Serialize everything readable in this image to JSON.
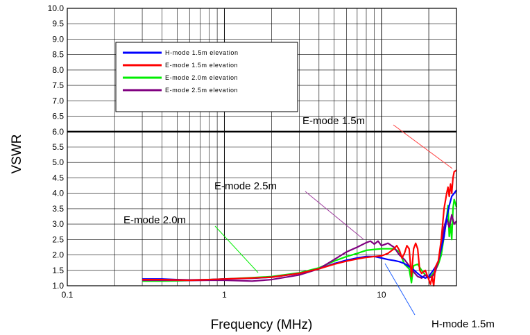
{
  "chart_data": {
    "type": "line",
    "xlabel": "Frequency (MHz)",
    "ylabel": "VSWR",
    "xscale": "log",
    "xlim": [
      0.1,
      30
    ],
    "ylim": [
      1.0,
      10.0
    ],
    "x_tick_labels": [
      {
        "value": 0.1,
        "label": "0.1"
      },
      {
        "value": 1,
        "label": "1"
      },
      {
        "value": 10,
        "label": "10"
      }
    ],
    "y_tick_labels": [
      "1.0",
      "1.5",
      "2.0",
      "2.5",
      "3.0",
      "3.5",
      "4.0",
      "4.5",
      "5.0",
      "5.5",
      "6.0",
      "6.5",
      "7.0",
      "7.5",
      "8.0",
      "8.5",
      "9.0",
      "9.5",
      "10.0"
    ],
    "grid": true,
    "legend_position": "top-left",
    "reference_line": {
      "y": 6.0
    },
    "series": [
      {
        "name": "H-mode 1.5m elevation",
        "color": "#0000ff",
        "points": [
          [
            0.3,
            1.22
          ],
          [
            0.4,
            1.22
          ],
          [
            0.5,
            1.2
          ],
          [
            0.6,
            1.19
          ],
          [
            0.8,
            1.2
          ],
          [
            1,
            1.22
          ],
          [
            1.5,
            1.24
          ],
          [
            2,
            1.28
          ],
          [
            3,
            1.4
          ],
          [
            4,
            1.55
          ],
          [
            5,
            1.72
          ],
          [
            6,
            1.83
          ],
          [
            7,
            1.9
          ],
          [
            8,
            1.95
          ],
          [
            9,
            1.95
          ],
          [
            10,
            1.9
          ],
          [
            11,
            1.85
          ],
          [
            12,
            1.82
          ],
          [
            13,
            1.78
          ],
          [
            14,
            1.72
          ],
          [
            15,
            1.62
          ],
          [
            16,
            1.52
          ],
          [
            17,
            1.4
          ],
          [
            18,
            1.3
          ],
          [
            19,
            1.25
          ],
          [
            20,
            1.3
          ],
          [
            21,
            1.45
          ],
          [
            22,
            1.6
          ],
          [
            23,
            1.8
          ],
          [
            24,
            2.2
          ],
          [
            25,
            2.6
          ],
          [
            26,
            3.2
          ],
          [
            27,
            3.6
          ],
          [
            28,
            3.9
          ],
          [
            29,
            4.0
          ],
          [
            30,
            4.1
          ]
        ]
      },
      {
        "name": "E-mode 1.5m elevation",
        "color": "#ff0000",
        "points": [
          [
            0.3,
            1.2
          ],
          [
            0.4,
            1.2
          ],
          [
            0.5,
            1.19
          ],
          [
            0.6,
            1.18
          ],
          [
            0.8,
            1.2
          ],
          [
            1,
            1.22
          ],
          [
            1.5,
            1.25
          ],
          [
            2,
            1.28
          ],
          [
            3,
            1.4
          ],
          [
            4,
            1.55
          ],
          [
            5,
            1.7
          ],
          [
            6,
            1.8
          ],
          [
            7,
            1.87
          ],
          [
            8,
            1.92
          ],
          [
            9,
            1.95
          ],
          [
            10,
            1.97
          ],
          [
            11,
            2.05
          ],
          [
            12,
            2.2
          ],
          [
            12.5,
            2.3
          ],
          [
            13,
            2.15
          ],
          [
            13.5,
            1.9
          ],
          [
            14,
            2.05
          ],
          [
            14.5,
            2.3
          ],
          [
            15,
            2.2
          ],
          [
            15.5,
            1.3
          ],
          [
            16,
            2.2
          ],
          [
            16.5,
            2.38
          ],
          [
            17,
            2.2
          ],
          [
            17.5,
            1.5
          ],
          [
            18,
            1.4
          ],
          [
            19,
            1.5
          ],
          [
            20,
            1.2
          ],
          [
            20.5,
            1.05
          ],
          [
            21,
            1.3
          ],
          [
            21.5,
            1.0
          ],
          [
            22,
            1.6
          ],
          [
            23,
            1.8
          ],
          [
            24,
            2.5
          ],
          [
            25,
            3.5
          ],
          [
            26,
            4.0
          ],
          [
            26.5,
            4.2
          ],
          [
            27,
            3.9
          ],
          [
            27.5,
            4.3
          ],
          [
            28,
            4.0
          ],
          [
            28.5,
            4.5
          ],
          [
            29,
            4.7
          ],
          [
            30,
            4.75
          ]
        ]
      },
      {
        "name": "E-mode 2.0m elevation",
        "color": "#00ee00",
        "points": [
          [
            0.3,
            1.15
          ],
          [
            0.4,
            1.15
          ],
          [
            0.5,
            1.16
          ],
          [
            0.6,
            1.17
          ],
          [
            0.8,
            1.2
          ],
          [
            1,
            1.22
          ],
          [
            1.5,
            1.26
          ],
          [
            2,
            1.3
          ],
          [
            3,
            1.42
          ],
          [
            4,
            1.58
          ],
          [
            5,
            1.8
          ],
          [
            6,
            1.95
          ],
          [
            7,
            2.05
          ],
          [
            8,
            2.15
          ],
          [
            9,
            2.18
          ],
          [
            10,
            2.2
          ],
          [
            11,
            2.2
          ],
          [
            12,
            2.2
          ],
          [
            13,
            2.1
          ],
          [
            14,
            1.7
          ],
          [
            15,
            1.55
          ],
          [
            15.5,
            1.1
          ],
          [
            16,
            1.65
          ],
          [
            17,
            1.7
          ],
          [
            18,
            1.5
          ],
          [
            19,
            1.35
          ],
          [
            20,
            1.25
          ],
          [
            21,
            1.35
          ],
          [
            22,
            1.5
          ],
          [
            23,
            1.7
          ],
          [
            24,
            2.0
          ],
          [
            25,
            2.6
          ],
          [
            26,
            3.2
          ],
          [
            26.5,
            3.6
          ],
          [
            27,
            2.6
          ],
          [
            27.5,
            3.0
          ],
          [
            28,
            2.5
          ],
          [
            28.5,
            3.5
          ],
          [
            29,
            3.8
          ],
          [
            30,
            3.55
          ]
        ]
      },
      {
        "name": "E-mode 2.5m elevation",
        "color": "#800080",
        "points": [
          [
            0.3,
            1.18
          ],
          [
            0.4,
            1.18
          ],
          [
            0.5,
            1.18
          ],
          [
            0.6,
            1.17
          ],
          [
            0.8,
            1.18
          ],
          [
            1,
            1.18
          ],
          [
            1.5,
            1.15
          ],
          [
            2,
            1.2
          ],
          [
            3,
            1.35
          ],
          [
            4,
            1.55
          ],
          [
            5,
            1.85
          ],
          [
            6,
            2.1
          ],
          [
            7,
            2.25
          ],
          [
            8,
            2.4
          ],
          [
            8.5,
            2.45
          ],
          [
            9,
            2.35
          ],
          [
            9.5,
            2.45
          ],
          [
            10,
            2.3
          ],
          [
            11,
            2.38
          ],
          [
            12,
            2.25
          ],
          [
            13,
            2.0
          ],
          [
            14,
            1.85
          ],
          [
            15,
            1.65
          ],
          [
            16,
            1.45
          ],
          [
            17,
            1.3
          ],
          [
            18,
            1.25
          ],
          [
            19,
            1.35
          ],
          [
            20,
            1.25
          ],
          [
            21,
            1.3
          ],
          [
            22,
            1.45
          ],
          [
            23,
            1.8
          ],
          [
            24,
            2.3
          ],
          [
            25,
            2.9
          ],
          [
            26,
            3.2
          ],
          [
            27,
            2.9
          ],
          [
            28,
            3.3
          ],
          [
            29,
            3.0
          ],
          [
            30,
            3.1
          ]
        ]
      }
    ],
    "annotations": [
      {
        "text": "E-mode 1.5m",
        "x": 30,
        "y": 4.6
      },
      {
        "text": "E-mode 2.5m",
        "x": 7.8,
        "y": 2.5
      },
      {
        "text": "E-mode 2.0m",
        "x": 2.2,
        "y": 1.35
      },
      {
        "text": "H-mode 1.5m",
        "x": 11,
        "y": 1.95
      }
    ]
  }
}
